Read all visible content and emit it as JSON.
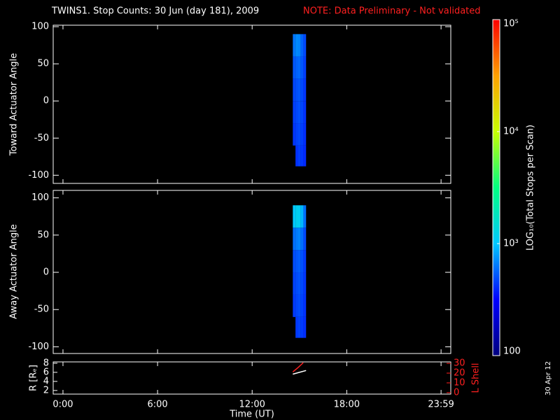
{
  "chart_data": {
    "type": "spectrogram",
    "title": "TWINS1. Stop Counts: 30 Jun (day 181), 2009",
    "note": "NOTE: Data Preliminary - Not validated",
    "note_color": "#ff2020",
    "side_label": "30 Apr 12",
    "xlabel": "Time (UT)",
    "xlim": [
      -0.62,
      24.6
    ],
    "xticks": [
      {
        "value": 0,
        "label": "0:00"
      },
      {
        "value": 6,
        "label": "6:00"
      },
      {
        "value": 12,
        "label": "12:00"
      },
      {
        "value": 18,
        "label": "18:00"
      },
      {
        "value": 23.983,
        "label": "23:59"
      }
    ],
    "colorscale": [
      "#00007f",
      "#0000ff",
      "#00c8ff",
      "#00ff80",
      "#c8ff00",
      "#ffa000",
      "#ff0000"
    ],
    "colorbar": {
      "label": "LOG₁₀(Total Stops per Scan)",
      "zlim": [
        100,
        100000
      ],
      "log": true,
      "ticks": [
        {
          "value": 100,
          "label": "100"
        },
        {
          "value": 1000,
          "label": "10³"
        },
        {
          "value": 10000,
          "label": "10⁴"
        },
        {
          "value": 100000,
          "label": "10⁵"
        }
      ]
    },
    "panels": [
      {
        "type": "heatmap",
        "ylabel": "Toward Actuator Angle",
        "ylim": [
          -111,
          102
        ],
        "yticks": [
          -100,
          -50,
          0,
          50,
          100
        ],
        "x_edges": [
          14.58,
          14.75,
          14.92,
          15.08,
          15.25,
          15.42
        ],
        "y_edges": [
          -88,
          -60,
          -30,
          0,
          30,
          60,
          90
        ],
        "values": [
          [
            null,
            420,
            450,
            430,
            400
          ],
          [
            430,
            460,
            480,
            450,
            410
          ],
          [
            450,
            480,
            500,
            470,
            420
          ],
          [
            470,
            500,
            520,
            480,
            430
          ],
          [
            520,
            560,
            580,
            520,
            450
          ],
          [
            620,
            700,
            680,
            560,
            480
          ]
        ]
      },
      {
        "type": "heatmap",
        "ylabel": "Away Actuator Angle",
        "ylim": [
          -109,
          110
        ],
        "yticks": [
          -100,
          -50,
          0,
          50,
          100
        ],
        "x_edges": [
          14.58,
          14.75,
          14.92,
          15.08,
          15.25,
          15.42
        ],
        "y_edges": [
          -88,
          -60,
          -30,
          0,
          30,
          60,
          90
        ],
        "values": [
          [
            null,
            440,
            460,
            440,
            410
          ],
          [
            440,
            470,
            490,
            460,
            420
          ],
          [
            460,
            490,
            510,
            480,
            430
          ],
          [
            490,
            520,
            540,
            500,
            440
          ],
          [
            600,
            650,
            680,
            600,
            480
          ],
          [
            1000,
            1150,
            1100,
            900,
            600
          ]
        ]
      }
    ],
    "ephemeris": {
      "type": "line",
      "ylabel": "R [Rₑ]",
      "y2label": "L Shell",
      "y2color": "#ff2020",
      "ylim": [
        1.2,
        8.3
      ],
      "yticks": [
        2,
        4,
        6,
        8
      ],
      "y2lim": [
        -1.5,
        31.5
      ],
      "y2ticks": [
        0,
        10,
        20,
        30
      ],
      "series": [
        {
          "color": "#ffffff",
          "x": [
            14.58,
            15.0,
            15.42
          ],
          "values": [
            5.6,
            6.0,
            6.4
          ]
        },
        {
          "color": "#ff2020",
          "axis": "y2",
          "x": [
            14.58,
            14.9,
            15.24
          ],
          "values": [
            21.2,
            25.5,
            30.7
          ]
        }
      ]
    }
  }
}
